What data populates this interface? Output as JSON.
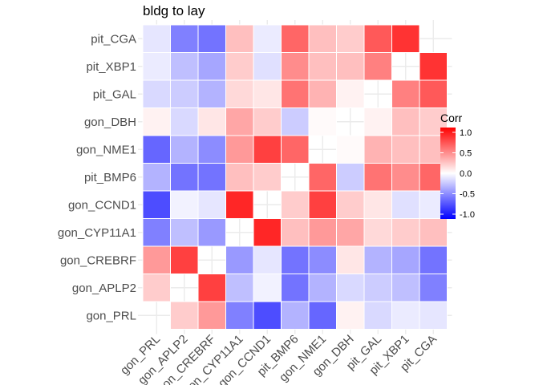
{
  "chart_data": {
    "type": "heatmap",
    "title": "bldg to lay",
    "subtitle": "",
    "xlabel": "",
    "ylabel": "",
    "x_labels": [
      "gon_PRL",
      "gon_APLP2",
      "gon_CREBRF",
      "gon_CYP11A1",
      "gon_CCND1",
      "pit_BMP6",
      "gon_NME1",
      "gon_DBH",
      "pit_GAL",
      "pit_XBP1",
      "pit_CGA"
    ],
    "y_labels": [
      "gon_PRL",
      "gon_APLP2",
      "gon_CREBRF",
      "gon_CYP11A1",
      "gon_CCND1",
      "pit_BMP6",
      "gon_NME1",
      "gon_DBH",
      "pit_GAL",
      "pit_XBP1",
      "pit_CGA"
    ],
    "cells": [
      {
        "x": "gon_APLP2",
        "y": "gon_PRL",
        "v": 0.2
      },
      {
        "x": "gon_CREBRF",
        "y": "gon_PRL",
        "v": 0.4
      },
      {
        "x": "gon_CYP11A1",
        "y": "gon_PRL",
        "v": -0.5
      },
      {
        "x": "gon_CCND1",
        "y": "gon_PRL",
        "v": -0.7
      },
      {
        "x": "pit_BMP6",
        "y": "gon_PRL",
        "v": -0.3
      },
      {
        "x": "gon_NME1",
        "y": "gon_PRL",
        "v": -0.6
      },
      {
        "x": "gon_DBH",
        "y": "gon_PRL",
        "v": 0.05
      },
      {
        "x": "pit_GAL",
        "y": "gon_PRL",
        "v": -0.15
      },
      {
        "x": "pit_XBP1",
        "y": "gon_PRL",
        "v": -0.08
      },
      {
        "x": "pit_CGA",
        "y": "gon_PRL",
        "v": -0.1
      },
      {
        "x": "gon_PRL",
        "y": "gon_APLP2",
        "v": 0.2
      },
      {
        "x": "gon_CREBRF",
        "y": "gon_APLP2",
        "v": 0.75
      },
      {
        "x": "gon_CYP11A1",
        "y": "gon_APLP2",
        "v": -0.25
      },
      {
        "x": "gon_CCND1",
        "y": "gon_APLP2",
        "v": -0.05
      },
      {
        "x": "pit_BMP6",
        "y": "gon_APLP2",
        "v": -0.55
      },
      {
        "x": "gon_NME1",
        "y": "gon_APLP2",
        "v": -0.3
      },
      {
        "x": "gon_DBH",
        "y": "gon_APLP2",
        "v": -0.15
      },
      {
        "x": "pit_GAL",
        "y": "gon_APLP2",
        "v": -0.2
      },
      {
        "x": "pit_XBP1",
        "y": "gon_APLP2",
        "v": -0.25
      },
      {
        "x": "pit_CGA",
        "y": "gon_APLP2",
        "v": -0.5
      },
      {
        "x": "gon_PRL",
        "y": "gon_CREBRF",
        "v": 0.4
      },
      {
        "x": "gon_APLP2",
        "y": "gon_CREBRF",
        "v": 0.75
      },
      {
        "x": "gon_CYP11A1",
        "y": "gon_CREBRF",
        "v": -0.4
      },
      {
        "x": "gon_CCND1",
        "y": "gon_CREBRF",
        "v": -0.1
      },
      {
        "x": "pit_BMP6",
        "y": "gon_CREBRF",
        "v": -0.55
      },
      {
        "x": "gon_NME1",
        "y": "gon_CREBRF",
        "v": -0.45
      },
      {
        "x": "gon_DBH",
        "y": "gon_CREBRF",
        "v": 0.1
      },
      {
        "x": "pit_GAL",
        "y": "gon_CREBRF",
        "v": -0.3
      },
      {
        "x": "pit_XBP1",
        "y": "gon_CREBRF",
        "v": -0.35
      },
      {
        "x": "pit_CGA",
        "y": "gon_CREBRF",
        "v": -0.55
      },
      {
        "x": "gon_PRL",
        "y": "gon_CYP11A1",
        "v": -0.5
      },
      {
        "x": "gon_APLP2",
        "y": "gon_CYP11A1",
        "v": -0.25
      },
      {
        "x": "gon_CREBRF",
        "y": "gon_CYP11A1",
        "v": -0.4
      },
      {
        "x": "gon_CCND1",
        "y": "gon_CYP11A1",
        "v": 0.85
      },
      {
        "x": "pit_BMP6",
        "y": "gon_CYP11A1",
        "v": 0.25
      },
      {
        "x": "gon_NME1",
        "y": "gon_CYP11A1",
        "v": 0.4
      },
      {
        "x": "gon_DBH",
        "y": "gon_CYP11A1",
        "v": 0.35
      },
      {
        "x": "pit_GAL",
        "y": "gon_CYP11A1",
        "v": 0.15
      },
      {
        "x": "pit_XBP1",
        "y": "gon_CYP11A1",
        "v": 0.2
      },
      {
        "x": "pit_CGA",
        "y": "gon_CYP11A1",
        "v": 0.25
      },
      {
        "x": "gon_PRL",
        "y": "gon_CCND1",
        "v": -0.7
      },
      {
        "x": "gon_APLP2",
        "y": "gon_CCND1",
        "v": -0.05
      },
      {
        "x": "gon_CREBRF",
        "y": "gon_CCND1",
        "v": -0.1
      },
      {
        "x": "gon_CYP11A1",
        "y": "gon_CCND1",
        "v": 0.85
      },
      {
        "x": "pit_BMP6",
        "y": "gon_CCND1",
        "v": 0.2
      },
      {
        "x": "gon_NME1",
        "y": "gon_CCND1",
        "v": 0.75
      },
      {
        "x": "gon_DBH",
        "y": "gon_CCND1",
        "v": 0.2
      },
      {
        "x": "pit_GAL",
        "y": "gon_CCND1",
        "v": 0.1
      },
      {
        "x": "pit_XBP1",
        "y": "gon_CCND1",
        "v": -0.12
      },
      {
        "x": "pit_CGA",
        "y": "gon_CCND1",
        "v": -0.08
      },
      {
        "x": "gon_PRL",
        "y": "pit_BMP6",
        "v": -0.3
      },
      {
        "x": "gon_APLP2",
        "y": "pit_BMP6",
        "v": -0.55
      },
      {
        "x": "gon_CREBRF",
        "y": "pit_BMP6",
        "v": -0.55
      },
      {
        "x": "gon_CYP11A1",
        "y": "pit_BMP6",
        "v": 0.25
      },
      {
        "x": "gon_CCND1",
        "y": "pit_BMP6",
        "v": 0.2
      },
      {
        "x": "gon_NME1",
        "y": "pit_BMP6",
        "v": 0.6
      },
      {
        "x": "gon_DBH",
        "y": "pit_BMP6",
        "v": -0.2
      },
      {
        "x": "pit_GAL",
        "y": "pit_BMP6",
        "v": 0.55
      },
      {
        "x": "pit_XBP1",
        "y": "pit_BMP6",
        "v": 0.45
      },
      {
        "x": "pit_CGA",
        "y": "pit_BMP6",
        "v": 0.6
      },
      {
        "x": "gon_PRL",
        "y": "gon_NME1",
        "v": -0.6
      },
      {
        "x": "gon_APLP2",
        "y": "gon_NME1",
        "v": -0.3
      },
      {
        "x": "gon_CREBRF",
        "y": "gon_NME1",
        "v": -0.45
      },
      {
        "x": "gon_CYP11A1",
        "y": "gon_NME1",
        "v": 0.4
      },
      {
        "x": "gon_CCND1",
        "y": "gon_NME1",
        "v": 0.75
      },
      {
        "x": "pit_BMP6",
        "y": "gon_NME1",
        "v": 0.6
      },
      {
        "x": "gon_DBH",
        "y": "gon_NME1",
        "v": 0.02
      },
      {
        "x": "pit_GAL",
        "y": "gon_NME1",
        "v": 0.3
      },
      {
        "x": "pit_XBP1",
        "y": "gon_NME1",
        "v": 0.25
      },
      {
        "x": "pit_CGA",
        "y": "gon_NME1",
        "v": 0.25
      },
      {
        "x": "gon_PRL",
        "y": "gon_DBH",
        "v": 0.05
      },
      {
        "x": "gon_APLP2",
        "y": "gon_DBH",
        "v": -0.15
      },
      {
        "x": "gon_CREBRF",
        "y": "gon_DBH",
        "v": 0.1
      },
      {
        "x": "gon_CYP11A1",
        "y": "gon_DBH",
        "v": 0.35
      },
      {
        "x": "gon_CCND1",
        "y": "gon_DBH",
        "v": 0.2
      },
      {
        "x": "pit_BMP6",
        "y": "gon_DBH",
        "v": -0.2
      },
      {
        "x": "gon_NME1",
        "y": "gon_DBH",
        "v": 0.02
      },
      {
        "x": "pit_GAL",
        "y": "gon_DBH",
        "v": 0.05
      },
      {
        "x": "pit_XBP1",
        "y": "gon_DBH",
        "v": 0.25
      },
      {
        "x": "pit_CGA",
        "y": "gon_DBH",
        "v": 0.2
      },
      {
        "x": "gon_PRL",
        "y": "pit_GAL",
        "v": -0.15
      },
      {
        "x": "gon_APLP2",
        "y": "pit_GAL",
        "v": -0.2
      },
      {
        "x": "gon_CREBRF",
        "y": "pit_GAL",
        "v": -0.3
      },
      {
        "x": "gon_CYP11A1",
        "y": "pit_GAL",
        "v": 0.15
      },
      {
        "x": "gon_CCND1",
        "y": "pit_GAL",
        "v": 0.1
      },
      {
        "x": "pit_BMP6",
        "y": "pit_GAL",
        "v": 0.55
      },
      {
        "x": "gon_NME1",
        "y": "pit_GAL",
        "v": 0.3
      },
      {
        "x": "gon_DBH",
        "y": "pit_GAL",
        "v": 0.05
      },
      {
        "x": "pit_XBP1",
        "y": "pit_GAL",
        "v": 0.5
      },
      {
        "x": "pit_CGA",
        "y": "pit_GAL",
        "v": 0.65
      },
      {
        "x": "gon_PRL",
        "y": "pit_XBP1",
        "v": -0.08
      },
      {
        "x": "gon_APLP2",
        "y": "pit_XBP1",
        "v": -0.25
      },
      {
        "x": "gon_CREBRF",
        "y": "pit_XBP1",
        "v": -0.35
      },
      {
        "x": "gon_CYP11A1",
        "y": "pit_XBP1",
        "v": 0.2
      },
      {
        "x": "gon_CCND1",
        "y": "pit_XBP1",
        "v": -0.12
      },
      {
        "x": "pit_BMP6",
        "y": "pit_XBP1",
        "v": 0.45
      },
      {
        "x": "gon_NME1",
        "y": "pit_XBP1",
        "v": 0.25
      },
      {
        "x": "gon_DBH",
        "y": "pit_XBP1",
        "v": 0.25
      },
      {
        "x": "pit_GAL",
        "y": "pit_XBP1",
        "v": 0.5
      },
      {
        "x": "pit_CGA",
        "y": "pit_XBP1",
        "v": 0.8
      },
      {
        "x": "gon_PRL",
        "y": "pit_CGA",
        "v": -0.1
      },
      {
        "x": "gon_APLP2",
        "y": "pit_CGA",
        "v": -0.5
      },
      {
        "x": "gon_CREBRF",
        "y": "pit_CGA",
        "v": -0.55
      },
      {
        "x": "gon_CYP11A1",
        "y": "pit_CGA",
        "v": 0.25
      },
      {
        "x": "gon_CCND1",
        "y": "pit_CGA",
        "v": -0.08
      },
      {
        "x": "pit_BMP6",
        "y": "pit_CGA",
        "v": 0.6
      },
      {
        "x": "gon_NME1",
        "y": "pit_CGA",
        "v": 0.25
      },
      {
        "x": "gon_DBH",
        "y": "pit_CGA",
        "v": 0.2
      },
      {
        "x": "pit_GAL",
        "y": "pit_CGA",
        "v": 0.65
      },
      {
        "x": "pit_XBP1",
        "y": "pit_CGA",
        "v": 0.8
      }
    ],
    "legend": {
      "title": "Corr",
      "ticks": [
        "1.0",
        "0.5",
        "0.0",
        "-0.5",
        "-1.0"
      ],
      "tick_values": [
        1.0,
        0.5,
        0.0,
        -0.5,
        -1.0
      ],
      "placement": "right",
      "colors": {
        "low": "#0000ff",
        "mid": "#ffffff",
        "high": "#ff0000"
      }
    },
    "value_range": [
      -1,
      1
    ],
    "grid": true,
    "panel_background": "#ffffff",
    "grid_color": "#ebebeb"
  }
}
